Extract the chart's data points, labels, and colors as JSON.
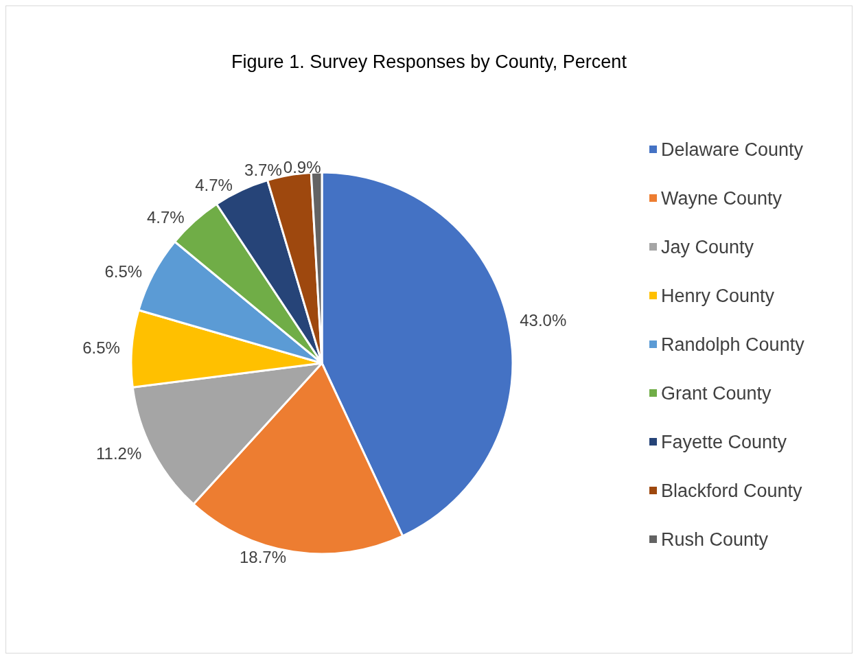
{
  "chart_data": {
    "type": "pie",
    "title": "Figure 1. Survey Responses by County, Percent",
    "categories": [
      "Delaware County",
      "Wayne County",
      "Jay County",
      "Henry County",
      "Randolph County",
      "Grant County",
      "Fayette County",
      "Blackford County",
      "Rush County"
    ],
    "values": [
      43.0,
      18.7,
      11.2,
      6.5,
      6.5,
      4.7,
      4.7,
      3.7,
      0.9
    ],
    "value_labels": [
      "43.0%",
      "18.7%",
      "11.2%",
      "6.5%",
      "6.5%",
      "4.7%",
      "4.7%",
      "3.7%",
      "0.9%"
    ],
    "colors": [
      "#4472c4",
      "#ed7d31",
      "#a5a5a5",
      "#ffc000",
      "#5b9bd5",
      "#70ad47",
      "#264478",
      "#9e480e",
      "#636363"
    ],
    "legend": "right"
  }
}
